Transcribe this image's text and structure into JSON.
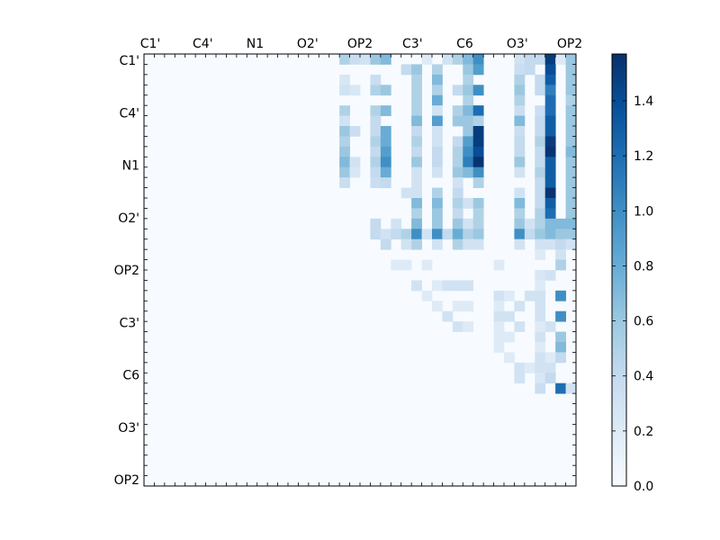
{
  "chart_data": {
    "type": "heatmap",
    "colormap": "Blues",
    "vmin": 0.0,
    "vmax": 1.57,
    "n_rows": 42,
    "n_cols": 42,
    "x_tick_labels": [
      "C1'",
      "C4'",
      "N1",
      "O2'",
      "OP2",
      "C3'",
      "C6",
      "O3'",
      "OP2"
    ],
    "y_tick_labels": [
      "C1'",
      "C4'",
      "N1",
      "O2'",
      "OP2",
      "C3'",
      "C6",
      "O3'",
      "OP2"
    ],
    "colorbar_ticks": [
      "0.0",
      "0.2",
      "0.4",
      "0.6",
      "0.8",
      "1.0",
      "1.2",
      "1.4"
    ],
    "colorbar_tick_values": [
      0.0,
      0.2,
      0.4,
      0.6,
      0.8,
      1.0,
      1.2,
      1.4
    ],
    "description_of_values": "upper-triangular distance-difference style matrix; strongest values in columns near the right edge",
    "grid": false,
    "colors": {
      "low": "#f7fbff",
      "high": "#08306b"
    },
    "cells": [
      {
        "r": 0,
        "c": 19,
        "v": 0.5
      },
      {
        "r": 0,
        "c": 20,
        "v": 0.35
      },
      {
        "r": 0,
        "c": 21,
        "v": 0.3
      },
      {
        "r": 0,
        "c": 22,
        "v": 0.6
      },
      {
        "r": 0,
        "c": 23,
        "v": 0.7
      },
      {
        "r": 0,
        "c": 27,
        "v": 0.2
      },
      {
        "r": 0,
        "c": 29,
        "v": 0.3
      },
      {
        "r": 0,
        "c": 30,
        "v": 0.5
      },
      {
        "r": 0,
        "c": 31,
        "v": 0.7
      },
      {
        "r": 0,
        "c": 32,
        "v": 1.0
      },
      {
        "r": 0,
        "c": 36,
        "v": 0.3
      },
      {
        "r": 0,
        "c": 37,
        "v": 0.4
      },
      {
        "r": 0,
        "c": 38,
        "v": 0.4
      },
      {
        "r": 0,
        "c": 39,
        "v": 1.5
      },
      {
        "r": 0,
        "c": 40,
        "v": 0.2
      },
      {
        "r": 0,
        "c": 41,
        "v": 0.6
      },
      {
        "r": 1,
        "c": 25,
        "v": 0.4
      },
      {
        "r": 1,
        "c": 26,
        "v": 0.6
      },
      {
        "r": 1,
        "c": 28,
        "v": 0.5
      },
      {
        "r": 1,
        "c": 31,
        "v": 0.6
      },
      {
        "r": 1,
        "c": 32,
        "v": 0.9
      },
      {
        "r": 1,
        "c": 36,
        "v": 0.35
      },
      {
        "r": 1,
        "c": 37,
        "v": 0.4
      },
      {
        "r": 1,
        "c": 39,
        "v": 1.4
      },
      {
        "r": 1,
        "c": 41,
        "v": 0.6
      },
      {
        "r": 2,
        "c": 19,
        "v": 0.25
      },
      {
        "r": 2,
        "c": 22,
        "v": 0.35
      },
      {
        "r": 2,
        "c": 26,
        "v": 0.5
      },
      {
        "r": 2,
        "c": 28,
        "v": 0.7
      },
      {
        "r": 2,
        "c": 31,
        "v": 0.5
      },
      {
        "r": 2,
        "c": 36,
        "v": 0.5
      },
      {
        "r": 2,
        "c": 38,
        "v": 0.4
      },
      {
        "r": 2,
        "c": 39,
        "v": 1.3
      },
      {
        "r": 2,
        "c": 41,
        "v": 0.6
      },
      {
        "r": 3,
        "c": 19,
        "v": 0.3
      },
      {
        "r": 3,
        "c": 20,
        "v": 0.25
      },
      {
        "r": 3,
        "c": 22,
        "v": 0.5
      },
      {
        "r": 3,
        "c": 23,
        "v": 0.6
      },
      {
        "r": 3,
        "c": 26,
        "v": 0.5
      },
      {
        "r": 3,
        "c": 28,
        "v": 0.5
      },
      {
        "r": 3,
        "c": 30,
        "v": 0.4
      },
      {
        "r": 3,
        "c": 31,
        "v": 0.6
      },
      {
        "r": 3,
        "c": 32,
        "v": 1.0
      },
      {
        "r": 3,
        "c": 36,
        "v": 0.6
      },
      {
        "r": 3,
        "c": 38,
        "v": 0.4
      },
      {
        "r": 3,
        "c": 39,
        "v": 1.1
      },
      {
        "r": 3,
        "c": 41,
        "v": 0.6
      },
      {
        "r": 4,
        "c": 26,
        "v": 0.5
      },
      {
        "r": 4,
        "c": 28,
        "v": 0.8
      },
      {
        "r": 4,
        "c": 31,
        "v": 0.5
      },
      {
        "r": 4,
        "c": 36,
        "v": 0.5
      },
      {
        "r": 4,
        "c": 39,
        "v": 1.2
      },
      {
        "r": 4,
        "c": 41,
        "v": 0.5
      },
      {
        "r": 5,
        "c": 19,
        "v": 0.5
      },
      {
        "r": 5,
        "c": 22,
        "v": 0.5
      },
      {
        "r": 5,
        "c": 23,
        "v": 0.7
      },
      {
        "r": 5,
        "c": 26,
        "v": 0.5
      },
      {
        "r": 5,
        "c": 28,
        "v": 0.3
      },
      {
        "r": 5,
        "c": 30,
        "v": 0.5
      },
      {
        "r": 5,
        "c": 31,
        "v": 0.7
      },
      {
        "r": 5,
        "c": 32,
        "v": 1.2
      },
      {
        "r": 5,
        "c": 36,
        "v": 0.35
      },
      {
        "r": 5,
        "c": 38,
        "v": 0.35
      },
      {
        "r": 5,
        "c": 39,
        "v": 1.2
      },
      {
        "r": 5,
        "c": 41,
        "v": 0.6
      },
      {
        "r": 6,
        "c": 19,
        "v": 0.3
      },
      {
        "r": 6,
        "c": 22,
        "v": 0.4
      },
      {
        "r": 6,
        "c": 26,
        "v": 0.7
      },
      {
        "r": 6,
        "c": 28,
        "v": 0.9
      },
      {
        "r": 6,
        "c": 30,
        "v": 0.6
      },
      {
        "r": 6,
        "c": 31,
        "v": 0.6
      },
      {
        "r": 6,
        "c": 32,
        "v": 0.5
      },
      {
        "r": 6,
        "c": 36,
        "v": 0.7
      },
      {
        "r": 6,
        "c": 38,
        "v": 0.4
      },
      {
        "r": 6,
        "c": 39,
        "v": 1.3
      },
      {
        "r": 6,
        "c": 41,
        "v": 0.6
      },
      {
        "r": 7,
        "c": 19,
        "v": 0.6
      },
      {
        "r": 7,
        "c": 20,
        "v": 0.35
      },
      {
        "r": 7,
        "c": 22,
        "v": 0.4
      },
      {
        "r": 7,
        "c": 23,
        "v": 0.8
      },
      {
        "r": 7,
        "c": 26,
        "v": 0.4
      },
      {
        "r": 7,
        "c": 28,
        "v": 0.3
      },
      {
        "r": 7,
        "c": 31,
        "v": 0.6
      },
      {
        "r": 7,
        "c": 32,
        "v": 1.5
      },
      {
        "r": 7,
        "c": 36,
        "v": 0.35
      },
      {
        "r": 7,
        "c": 38,
        "v": 0.4
      },
      {
        "r": 7,
        "c": 39,
        "v": 1.3
      },
      {
        "r": 7,
        "c": 41,
        "v": 0.6
      },
      {
        "r": 8,
        "c": 19,
        "v": 0.5
      },
      {
        "r": 8,
        "c": 22,
        "v": 0.5
      },
      {
        "r": 8,
        "c": 23,
        "v": 0.8
      },
      {
        "r": 8,
        "c": 26,
        "v": 0.5
      },
      {
        "r": 8,
        "c": 28,
        "v": 0.3
      },
      {
        "r": 8,
        "c": 30,
        "v": 0.4
      },
      {
        "r": 8,
        "c": 31,
        "v": 0.9
      },
      {
        "r": 8,
        "c": 32,
        "v": 1.5
      },
      {
        "r": 8,
        "c": 36,
        "v": 0.4
      },
      {
        "r": 8,
        "c": 38,
        "v": 0.5
      },
      {
        "r": 8,
        "c": 39,
        "v": 1.5
      },
      {
        "r": 8,
        "c": 41,
        "v": 0.6
      },
      {
        "r": 9,
        "c": 19,
        "v": 0.6
      },
      {
        "r": 9,
        "c": 22,
        "v": 0.4
      },
      {
        "r": 9,
        "c": 23,
        "v": 0.9
      },
      {
        "r": 9,
        "c": 26,
        "v": 0.4
      },
      {
        "r": 9,
        "c": 28,
        "v": 0.4
      },
      {
        "r": 9,
        "c": 30,
        "v": 0.5
      },
      {
        "r": 9,
        "c": 31,
        "v": 1.0
      },
      {
        "r": 9,
        "c": 32,
        "v": 1.4
      },
      {
        "r": 9,
        "c": 36,
        "v": 0.4
      },
      {
        "r": 9,
        "c": 38,
        "v": 0.4
      },
      {
        "r": 9,
        "c": 39,
        "v": 1.55
      },
      {
        "r": 9,
        "c": 41,
        "v": 0.7
      },
      {
        "r": 10,
        "c": 19,
        "v": 0.7
      },
      {
        "r": 10,
        "c": 20,
        "v": 0.3
      },
      {
        "r": 10,
        "c": 22,
        "v": 0.5
      },
      {
        "r": 10,
        "c": 23,
        "v": 1.0
      },
      {
        "r": 10,
        "c": 26,
        "v": 0.6
      },
      {
        "r": 10,
        "c": 28,
        "v": 0.4
      },
      {
        "r": 10,
        "c": 30,
        "v": 0.5
      },
      {
        "r": 10,
        "c": 31,
        "v": 1.1
      },
      {
        "r": 10,
        "c": 32,
        "v": 1.55
      },
      {
        "r": 10,
        "c": 36,
        "v": 0.6
      },
      {
        "r": 10,
        "c": 38,
        "v": 0.4
      },
      {
        "r": 10,
        "c": 39,
        "v": 1.3
      },
      {
        "r": 10,
        "c": 41,
        "v": 0.6
      },
      {
        "r": 11,
        "c": 19,
        "v": 0.6
      },
      {
        "r": 11,
        "c": 20,
        "v": 0.25
      },
      {
        "r": 11,
        "c": 22,
        "v": 0.4
      },
      {
        "r": 11,
        "c": 23,
        "v": 0.8
      },
      {
        "r": 11,
        "c": 26,
        "v": 0.3
      },
      {
        "r": 11,
        "c": 28,
        "v": 0.3
      },
      {
        "r": 11,
        "c": 30,
        "v": 0.6
      },
      {
        "r": 11,
        "c": 31,
        "v": 0.7
      },
      {
        "r": 11,
        "c": 32,
        "v": 1.0
      },
      {
        "r": 11,
        "c": 36,
        "v": 0.3
      },
      {
        "r": 11,
        "c": 38,
        "v": 0.5
      },
      {
        "r": 11,
        "c": 39,
        "v": 1.3
      },
      {
        "r": 11,
        "c": 41,
        "v": 0.6
      },
      {
        "r": 12,
        "c": 19,
        "v": 0.35
      },
      {
        "r": 12,
        "c": 22,
        "v": 0.35
      },
      {
        "r": 12,
        "c": 23,
        "v": 0.4
      },
      {
        "r": 12,
        "c": 26,
        "v": 0.3
      },
      {
        "r": 12,
        "c": 30,
        "v": 0.3
      },
      {
        "r": 12,
        "c": 32,
        "v": 0.5
      },
      {
        "r": 12,
        "c": 38,
        "v": 0.4
      },
      {
        "r": 12,
        "c": 39,
        "v": 1.3
      },
      {
        "r": 12,
        "c": 41,
        "v": 0.6
      },
      {
        "r": 13,
        "c": 25,
        "v": 0.3
      },
      {
        "r": 13,
        "c": 26,
        "v": 0.3
      },
      {
        "r": 13,
        "c": 28,
        "v": 0.5
      },
      {
        "r": 13,
        "c": 30,
        "v": 0.4
      },
      {
        "r": 13,
        "c": 36,
        "v": 0.3
      },
      {
        "r": 13,
        "c": 38,
        "v": 0.4
      },
      {
        "r": 13,
        "c": 39,
        "v": 1.55
      },
      {
        "r": 13,
        "c": 41,
        "v": 0.6
      },
      {
        "r": 14,
        "c": 26,
        "v": 0.7
      },
      {
        "r": 14,
        "c": 28,
        "v": 0.7
      },
      {
        "r": 14,
        "c": 30,
        "v": 0.5
      },
      {
        "r": 14,
        "c": 31,
        "v": 0.3
      },
      {
        "r": 14,
        "c": 32,
        "v": 0.6
      },
      {
        "r": 14,
        "c": 36,
        "v": 0.7
      },
      {
        "r": 14,
        "c": 38,
        "v": 0.4
      },
      {
        "r": 14,
        "c": 39,
        "v": 1.3
      },
      {
        "r": 14,
        "c": 41,
        "v": 0.6
      },
      {
        "r": 15,
        "c": 26,
        "v": 0.5
      },
      {
        "r": 15,
        "c": 28,
        "v": 0.6
      },
      {
        "r": 15,
        "c": 30,
        "v": 0.4
      },
      {
        "r": 15,
        "c": 32,
        "v": 0.5
      },
      {
        "r": 15,
        "c": 36,
        "v": 0.5
      },
      {
        "r": 15,
        "c": 38,
        "v": 0.5
      },
      {
        "r": 15,
        "c": 39,
        "v": 1.2
      },
      {
        "r": 15,
        "c": 41,
        "v": 0.6
      },
      {
        "r": 16,
        "c": 22,
        "v": 0.4
      },
      {
        "r": 16,
        "c": 24,
        "v": 0.3
      },
      {
        "r": 16,
        "c": 26,
        "v": 0.7
      },
      {
        "r": 16,
        "c": 28,
        "v": 0.6
      },
      {
        "r": 16,
        "c": 30,
        "v": 0.6
      },
      {
        "r": 16,
        "c": 31,
        "v": 0.3
      },
      {
        "r": 16,
        "c": 32,
        "v": 0.5
      },
      {
        "r": 16,
        "c": 36,
        "v": 0.6
      },
      {
        "r": 16,
        "c": 37,
        "v": 0.3
      },
      {
        "r": 16,
        "c": 38,
        "v": 0.5
      },
      {
        "r": 16,
        "c": 39,
        "v": 0.7
      },
      {
        "r": 16,
        "c": 40,
        "v": 0.7
      },
      {
        "r": 16,
        "c": 41,
        "v": 0.7
      },
      {
        "r": 17,
        "c": 22,
        "v": 0.4
      },
      {
        "r": 17,
        "c": 23,
        "v": 0.3
      },
      {
        "r": 17,
        "c": 24,
        "v": 0.4
      },
      {
        "r": 17,
        "c": 25,
        "v": 0.5
      },
      {
        "r": 17,
        "c": 26,
        "v": 1.0
      },
      {
        "r": 17,
        "c": 27,
        "v": 0.3
      },
      {
        "r": 17,
        "c": 28,
        "v": 1.0
      },
      {
        "r": 17,
        "c": 29,
        "v": 0.4
      },
      {
        "r": 17,
        "c": 30,
        "v": 0.8
      },
      {
        "r": 17,
        "c": 31,
        "v": 0.5
      },
      {
        "r": 17,
        "c": 32,
        "v": 0.6
      },
      {
        "r": 17,
        "c": 36,
        "v": 1.0
      },
      {
        "r": 17,
        "c": 37,
        "v": 0.4
      },
      {
        "r": 17,
        "c": 38,
        "v": 0.6
      },
      {
        "r": 17,
        "c": 39,
        "v": 0.7
      },
      {
        "r": 17,
        "c": 40,
        "v": 0.6
      },
      {
        "r": 17,
        "c": 41,
        "v": 0.6
      },
      {
        "r": 18,
        "c": 23,
        "v": 0.4
      },
      {
        "r": 18,
        "c": 25,
        "v": 0.3
      },
      {
        "r": 18,
        "c": 26,
        "v": 0.5
      },
      {
        "r": 18,
        "c": 28,
        "v": 0.3
      },
      {
        "r": 18,
        "c": 30,
        "v": 0.5
      },
      {
        "r": 18,
        "c": 31,
        "v": 0.3
      },
      {
        "r": 18,
        "c": 32,
        "v": 0.3
      },
      {
        "r": 18,
        "c": 36,
        "v": 0.3
      },
      {
        "r": 18,
        "c": 38,
        "v": 0.3
      },
      {
        "r": 18,
        "c": 39,
        "v": 0.3
      },
      {
        "r": 18,
        "c": 40,
        "v": 0.4
      },
      {
        "r": 18,
        "c": 41,
        "v": 0.3
      },
      {
        "r": 19,
        "c": 38,
        "v": 0.2
      },
      {
        "r": 19,
        "c": 40,
        "v": 0.3
      },
      {
        "r": 20,
        "c": 24,
        "v": 0.2
      },
      {
        "r": 20,
        "c": 25,
        "v": 0.2
      },
      {
        "r": 20,
        "c": 27,
        "v": 0.2
      },
      {
        "r": 20,
        "c": 34,
        "v": 0.2
      },
      {
        "r": 20,
        "c": 40,
        "v": 0.5
      },
      {
        "r": 21,
        "c": 38,
        "v": 0.25
      },
      {
        "r": 21,
        "c": 39,
        "v": 0.3
      },
      {
        "r": 22,
        "c": 26,
        "v": 0.3
      },
      {
        "r": 22,
        "c": 28,
        "v": 0.2
      },
      {
        "r": 22,
        "c": 29,
        "v": 0.3
      },
      {
        "r": 22,
        "c": 30,
        "v": 0.3
      },
      {
        "r": 22,
        "c": 31,
        "v": 0.3
      },
      {
        "r": 22,
        "c": 38,
        "v": 0.2
      },
      {
        "r": 23,
        "c": 27,
        "v": 0.2
      },
      {
        "r": 23,
        "c": 34,
        "v": 0.3
      },
      {
        "r": 23,
        "c": 35,
        "v": 0.2
      },
      {
        "r": 23,
        "c": 37,
        "v": 0.3
      },
      {
        "r": 23,
        "c": 38,
        "v": 0.3
      },
      {
        "r": 23,
        "c": 40,
        "v": 1.0
      },
      {
        "r": 24,
        "c": 28,
        "v": 0.2
      },
      {
        "r": 24,
        "c": 30,
        "v": 0.2
      },
      {
        "r": 24,
        "c": 31,
        "v": 0.2
      },
      {
        "r": 24,
        "c": 34,
        "v": 0.2
      },
      {
        "r": 24,
        "c": 36,
        "v": 0.3
      },
      {
        "r": 24,
        "c": 38,
        "v": 0.3
      },
      {
        "r": 25,
        "c": 29,
        "v": 0.3
      },
      {
        "r": 25,
        "c": 34,
        "v": 0.3
      },
      {
        "r": 25,
        "c": 35,
        "v": 0.3
      },
      {
        "r": 25,
        "c": 38,
        "v": 0.3
      },
      {
        "r": 25,
        "c": 40,
        "v": 1.0
      },
      {
        "r": 26,
        "c": 30,
        "v": 0.3
      },
      {
        "r": 26,
        "c": 31,
        "v": 0.2
      },
      {
        "r": 26,
        "c": 34,
        "v": 0.2
      },
      {
        "r": 26,
        "c": 36,
        "v": 0.3
      },
      {
        "r": 26,
        "c": 38,
        "v": 0.2
      },
      {
        "r": 26,
        "c": 39,
        "v": 0.3
      },
      {
        "r": 27,
        "c": 34,
        "v": 0.2
      },
      {
        "r": 27,
        "c": 35,
        "v": 0.2
      },
      {
        "r": 27,
        "c": 38,
        "v": 0.3
      },
      {
        "r": 27,
        "c": 40,
        "v": 0.6
      },
      {
        "r": 28,
        "c": 34,
        "v": 0.2
      },
      {
        "r": 28,
        "c": 38,
        "v": 0.2
      },
      {
        "r": 28,
        "c": 40,
        "v": 0.7
      },
      {
        "r": 29,
        "c": 35,
        "v": 0.2
      },
      {
        "r": 29,
        "c": 38,
        "v": 0.3
      },
      {
        "r": 29,
        "c": 39,
        "v": 0.2
      },
      {
        "r": 29,
        "c": 40,
        "v": 0.4
      },
      {
        "r": 30,
        "c": 36,
        "v": 0.3
      },
      {
        "r": 30,
        "c": 37,
        "v": 0.2
      },
      {
        "r": 30,
        "c": 38,
        "v": 0.3
      },
      {
        "r": 30,
        "c": 39,
        "v": 0.3
      },
      {
        "r": 31,
        "c": 36,
        "v": 0.3
      },
      {
        "r": 31,
        "c": 38,
        "v": 0.25
      },
      {
        "r": 31,
        "c": 39,
        "v": 0.4
      },
      {
        "r": 32,
        "c": 38,
        "v": 0.35
      },
      {
        "r": 32,
        "c": 40,
        "v": 1.2
      },
      {
        "r": 32,
        "c": 41,
        "v": 0.3
      }
    ]
  }
}
